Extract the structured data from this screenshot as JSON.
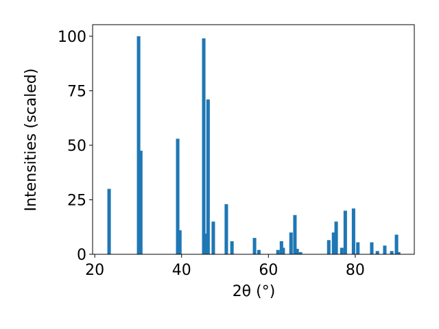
{
  "chart_data": {
    "type": "bar",
    "xlabel": "2θ (°)",
    "ylabel": "Intensities (scaled)",
    "color": "#1f77b4",
    "x": [
      23.3,
      30.1,
      30.6,
      39.1,
      39.6,
      45.1,
      45.6,
      46.1,
      47.3,
      50.3,
      51.6,
      56.8,
      57.8,
      62.2,
      63.0,
      63.4,
      65.2,
      66.1,
      66.6,
      67.4,
      73.9,
      75.0,
      75.6,
      76.9,
      77.7,
      79.6,
      80.6,
      83.8,
      85.1,
      86.8,
      88.4,
      89.5,
      90.0
    ],
    "values": [
      30,
      100,
      47.5,
      53,
      11,
      99,
      9.5,
      71,
      15,
      23,
      6,
      7.5,
      2,
      2,
      6,
      3,
      10,
      18,
      2.5,
      1,
      6.5,
      10,
      15,
      3,
      20,
      21,
      5.5,
      5.5,
      1.5,
      4,
      1.5,
      9,
      1
    ],
    "xlim": [
      19.5,
      93.6
    ],
    "ylim": [
      0,
      105.3
    ],
    "xticks": [
      20,
      40,
      60,
      80
    ],
    "yticks": [
      0,
      25,
      50,
      75,
      100
    ]
  }
}
